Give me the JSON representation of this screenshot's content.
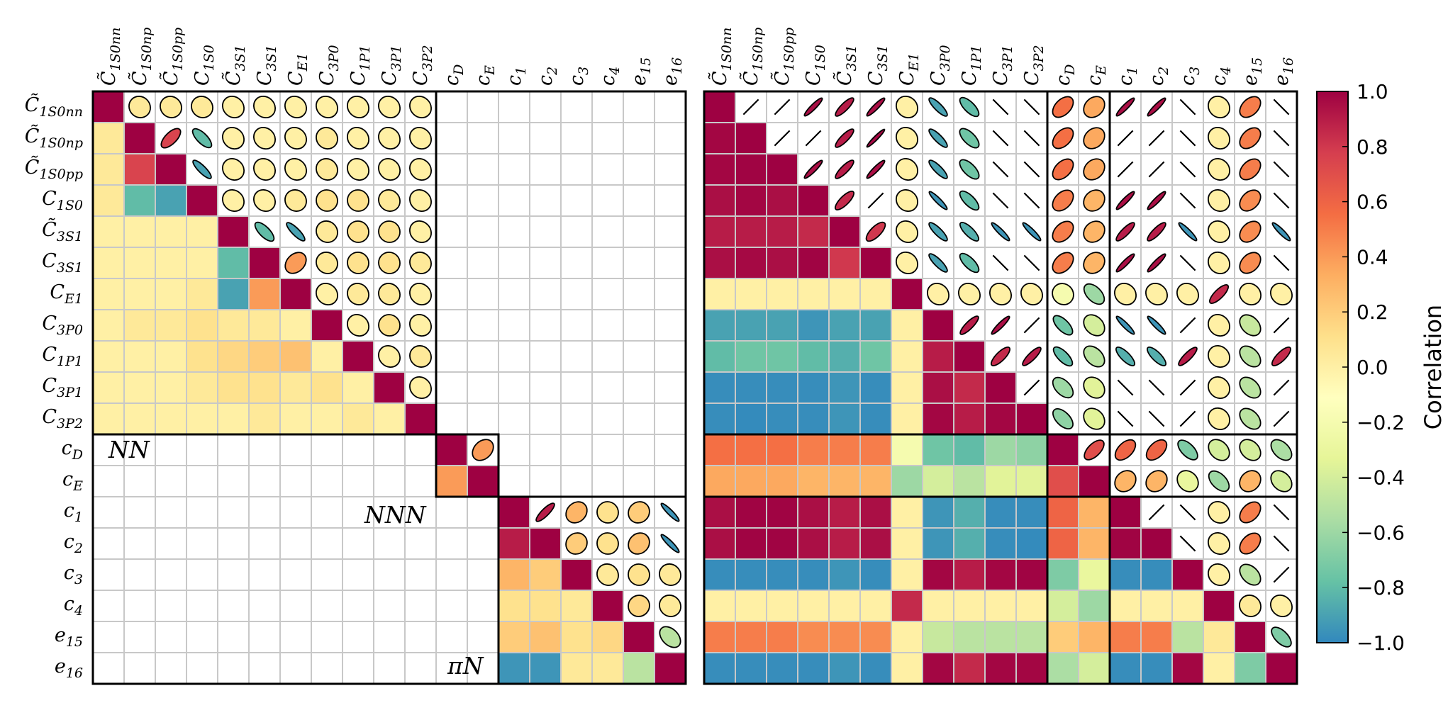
{
  "chart_data": {
    "type": "heatmap",
    "subtype": "correlation-matrix-pair",
    "labels": [
      "C̃1S0nn",
      "C̃1S0np",
      "C̃1S0pp",
      "C1S0",
      "C̃3S1",
      "C3S1",
      "CE1",
      "C3P0",
      "C1P1",
      "C3P1",
      "C3P2",
      "cD",
      "cE",
      "c1",
      "c2",
      "c3",
      "c4",
      "e15",
      "e16"
    ],
    "label_parts": [
      {
        "base": "C",
        "sub": "1S0nn",
        "tilde": true
      },
      {
        "base": "C",
        "sub": "1S0np",
        "tilde": true
      },
      {
        "base": "C",
        "sub": "1S0pp",
        "tilde": true
      },
      {
        "base": "C",
        "sub": "1S0",
        "tilde": false
      },
      {
        "base": "C",
        "sub": "3S1",
        "tilde": true
      },
      {
        "base": "C",
        "sub": "3S1",
        "tilde": false
      },
      {
        "base": "C",
        "sub": "E1",
        "tilde": false
      },
      {
        "base": "C",
        "sub": "3P0",
        "tilde": false
      },
      {
        "base": "C",
        "sub": "1P1",
        "tilde": false
      },
      {
        "base": "C",
        "sub": "3P1",
        "tilde": false
      },
      {
        "base": "C",
        "sub": "3P2",
        "tilde": false
      },
      {
        "base": "c",
        "sub": "D",
        "tilde": false
      },
      {
        "base": "c",
        "sub": "E",
        "tilde": false
      },
      {
        "base": "c",
        "sub": "1",
        "tilde": false
      },
      {
        "base": "c",
        "sub": "2",
        "tilde": false
      },
      {
        "base": "c",
        "sub": "3",
        "tilde": false
      },
      {
        "base": "c",
        "sub": "4",
        "tilde": false
      },
      {
        "base": "e",
        "sub": "15",
        "tilde": false
      },
      {
        "base": "e",
        "sub": "16",
        "tilde": false
      }
    ],
    "blocks": [
      {
        "name": "NN",
        "from": 0,
        "to": 10
      },
      {
        "name": "NNN",
        "from": 11,
        "to": 12
      },
      {
        "name": "πN",
        "from": 13,
        "to": 18
      }
    ],
    "block_labels": [
      "NN",
      "NNN",
      "πN"
    ],
    "colorbar": {
      "label": "Correlation",
      "range": [
        -1.0,
        1.0
      ],
      "ticks": [
        "1.0",
        "0.8",
        "0.6",
        "0.4",
        "0.2",
        "0.0",
        "−0.2",
        "−0.4",
        "−0.6",
        "−0.8",
        "−1.0"
      ],
      "colormap": "Spectral_r",
      "colors": [
        "#3288bd",
        "#66c2a5",
        "#abdda4",
        "#e6f598",
        "#ffffbf",
        "#fee08b",
        "#fdae61",
        "#f46d43",
        "#d53e4f",
        "#9e0142"
      ]
    },
    "matrices": [
      {
        "name": "left",
        "description": "block-diagonal correlations",
        "values": [
          [
            1.0,
            0.05,
            0.05,
            0.05,
            0.0,
            0.0,
            0.0,
            0.0,
            0.0,
            0.0,
            0.0,
            null,
            null,
            null,
            null,
            null,
            null,
            null,
            null
          ],
          [
            0.05,
            1.0,
            0.75,
            -0.8,
            0.0,
            0.0,
            0.0,
            0.05,
            0.0,
            0.0,
            0.0,
            null,
            null,
            null,
            null,
            null,
            null,
            null,
            null
          ],
          [
            0.05,
            0.75,
            1.0,
            -0.9,
            0.0,
            0.0,
            0.0,
            0.05,
            0.0,
            0.0,
            0.0,
            null,
            null,
            null,
            null,
            null,
            null,
            null,
            null
          ],
          [
            0.05,
            -0.8,
            -0.9,
            1.0,
            0.0,
            0.0,
            0.05,
            0.1,
            0.1,
            0.05,
            0.0,
            null,
            null,
            null,
            null,
            null,
            null,
            null,
            null
          ],
          [
            0.0,
            0.0,
            0.0,
            0.0,
            1.0,
            -0.8,
            -0.9,
            0.05,
            0.1,
            0.1,
            0.0,
            null,
            null,
            null,
            null,
            null,
            null,
            null,
            null
          ],
          [
            0.0,
            0.0,
            0.0,
            0.0,
            -0.8,
            1.0,
            0.4,
            0.05,
            0.1,
            0.1,
            0.05,
            null,
            null,
            null,
            null,
            null,
            null,
            null,
            null
          ],
          [
            0.0,
            0.0,
            0.0,
            0.05,
            -0.9,
            0.4,
            1.0,
            0.0,
            0.05,
            0.05,
            0.0,
            null,
            null,
            null,
            null,
            null,
            null,
            null,
            null
          ],
          [
            0.0,
            0.05,
            0.05,
            0.1,
            0.05,
            0.05,
            0.0,
            1.0,
            0.0,
            0.1,
            0.0,
            null,
            null,
            null,
            null,
            null,
            null,
            null,
            null
          ],
          [
            0.0,
            0.0,
            0.0,
            0.1,
            0.15,
            0.2,
            0.25,
            0.0,
            1.0,
            0.0,
            0.05,
            null,
            null,
            null,
            null,
            null,
            null,
            null,
            null
          ],
          [
            0.0,
            0.0,
            0.0,
            0.05,
            0.1,
            0.1,
            0.05,
            0.1,
            0.0,
            1.0,
            0.0,
            null,
            null,
            null,
            null,
            null,
            null,
            null,
            null
          ],
          [
            0.0,
            0.0,
            0.0,
            0.0,
            0.0,
            0.05,
            0.0,
            0.0,
            0.05,
            0.0,
            1.0,
            null,
            null,
            null,
            null,
            null,
            null,
            null,
            null
          ],
          [
            null,
            null,
            null,
            null,
            null,
            null,
            null,
            null,
            null,
            null,
            null,
            1.0,
            0.4,
            null,
            null,
            null,
            null,
            null,
            null
          ],
          [
            null,
            null,
            null,
            null,
            null,
            null,
            null,
            null,
            null,
            null,
            null,
            0.4,
            1.0,
            null,
            null,
            null,
            null,
            null,
            null
          ],
          [
            null,
            null,
            null,
            null,
            null,
            null,
            null,
            null,
            null,
            null,
            null,
            null,
            null,
            1.0,
            0.9,
            0.3,
            0.1,
            0.2,
            -0.95
          ],
          [
            null,
            null,
            null,
            null,
            null,
            null,
            null,
            null,
            null,
            null,
            null,
            null,
            null,
            0.9,
            1.0,
            0.2,
            0.1,
            0.25,
            -0.95
          ],
          [
            null,
            null,
            null,
            null,
            null,
            null,
            null,
            null,
            null,
            null,
            null,
            null,
            null,
            0.3,
            0.2,
            1.0,
            0.05,
            0.1,
            0.05
          ],
          [
            null,
            null,
            null,
            null,
            null,
            null,
            null,
            null,
            null,
            null,
            null,
            null,
            null,
            0.1,
            0.1,
            0.05,
            1.0,
            0.15,
            0.05
          ],
          [
            null,
            null,
            null,
            null,
            null,
            null,
            null,
            null,
            null,
            null,
            null,
            null,
            null,
            0.2,
            0.25,
            0.1,
            0.15,
            1.0,
            -0.5
          ],
          [
            null,
            null,
            null,
            null,
            null,
            null,
            null,
            null,
            null,
            null,
            null,
            null,
            null,
            -0.95,
            -0.95,
            0.05,
            0.05,
            -0.5,
            1.0
          ]
        ]
      },
      {
        "name": "right",
        "description": "full correlations",
        "values": [
          [
            1.0,
            0.98,
            0.98,
            0.95,
            0.9,
            0.95,
            0.0,
            -0.9,
            -0.8,
            -0.98,
            -0.98,
            0.55,
            0.35,
            0.95,
            0.95,
            -0.98,
            0.0,
            0.5,
            -0.98
          ],
          [
            0.98,
            1.0,
            0.99,
            0.98,
            0.9,
            0.97,
            0.0,
            -0.9,
            -0.75,
            -0.98,
            -0.99,
            0.55,
            0.35,
            0.99,
            0.99,
            -0.98,
            0.0,
            0.5,
            -0.98
          ],
          [
            0.98,
            0.99,
            1.0,
            0.95,
            0.9,
            0.95,
            0.0,
            -0.9,
            -0.75,
            -0.98,
            -0.98,
            0.55,
            0.35,
            0.99,
            0.99,
            -0.98,
            0.0,
            0.5,
            -0.98
          ],
          [
            0.95,
            0.98,
            0.95,
            1.0,
            0.85,
            0.99,
            0.0,
            -0.95,
            -0.8,
            -0.98,
            -0.98,
            0.5,
            0.3,
            0.95,
            0.95,
            -0.98,
            0.0,
            0.45,
            -0.98
          ],
          [
            0.9,
            0.9,
            0.9,
            0.85,
            1.0,
            0.8,
            0.0,
            -0.9,
            -0.85,
            -0.95,
            -0.95,
            0.5,
            0.3,
            0.9,
            0.9,
            -0.95,
            0.0,
            0.45,
            -0.95
          ],
          [
            0.95,
            0.97,
            0.95,
            0.99,
            0.8,
            1.0,
            0.0,
            -0.9,
            -0.8,
            -0.98,
            -0.98,
            0.5,
            0.3,
            0.95,
            0.95,
            -0.98,
            0.0,
            0.45,
            -0.98
          ],
          [
            0.0,
            0.0,
            0.0,
            0.0,
            0.0,
            0.0,
            1.0,
            0.0,
            0.0,
            0.0,
            0.0,
            -0.2,
            -0.6,
            0.0,
            0.0,
            0.0,
            0.85,
            0.0,
            0.0
          ],
          [
            -0.9,
            -0.9,
            -0.9,
            -0.95,
            -0.9,
            -0.9,
            0.0,
            1.0,
            0.9,
            0.95,
            0.98,
            -0.75,
            -0.4,
            -0.95,
            -0.95,
            0.98,
            0.0,
            -0.45,
            0.98
          ],
          [
            -0.8,
            -0.75,
            -0.75,
            -0.8,
            -0.85,
            -0.75,
            0.0,
            0.9,
            1.0,
            0.85,
            0.9,
            -0.8,
            -0.5,
            -0.85,
            -0.85,
            0.9,
            0.0,
            -0.5,
            0.85
          ],
          [
            -0.98,
            -0.98,
            -0.98,
            -0.98,
            -0.95,
            -0.98,
            0.0,
            0.95,
            0.85,
            1.0,
            0.98,
            -0.6,
            -0.35,
            -0.98,
            -0.98,
            0.98,
            0.0,
            -0.5,
            0.98
          ],
          [
            -0.98,
            -0.99,
            -0.98,
            -0.98,
            -0.95,
            -0.98,
            0.0,
            0.98,
            0.9,
            0.98,
            1.0,
            -0.65,
            -0.35,
            -0.98,
            -0.99,
            0.99,
            0.0,
            -0.5,
            0.98
          ],
          [
            0.55,
            0.55,
            0.55,
            0.5,
            0.5,
            0.5,
            -0.2,
            -0.75,
            -0.8,
            -0.6,
            -0.65,
            1.0,
            0.7,
            0.6,
            0.6,
            -0.7,
            -0.4,
            -0.4,
            -0.55
          ],
          [
            0.35,
            0.35,
            0.35,
            0.3,
            0.3,
            0.3,
            -0.6,
            -0.4,
            -0.5,
            -0.35,
            -0.35,
            0.7,
            1.0,
            0.3,
            0.3,
            -0.3,
            -0.6,
            0.3,
            -0.4
          ],
          [
            0.95,
            0.99,
            0.99,
            0.95,
            0.9,
            0.95,
            0.0,
            -0.95,
            -0.85,
            -0.98,
            -0.98,
            0.6,
            0.3,
            1.0,
            0.99,
            -0.98,
            0.0,
            0.5,
            -0.98
          ],
          [
            0.95,
            0.99,
            0.99,
            0.95,
            0.9,
            0.95,
            0.0,
            -0.95,
            -0.85,
            -0.98,
            -0.99,
            0.6,
            0.3,
            0.99,
            1.0,
            -0.98,
            0.0,
            0.5,
            -0.98
          ],
          [
            -0.98,
            -0.98,
            -0.98,
            -0.98,
            -0.95,
            -0.98,
            0.0,
            0.98,
            0.9,
            0.98,
            0.99,
            -0.7,
            -0.3,
            -0.98,
            -0.98,
            1.0,
            0.0,
            -0.5,
            0.98
          ],
          [
            0.0,
            0.0,
            0.0,
            0.0,
            0.0,
            0.0,
            0.85,
            0.0,
            0.0,
            0.0,
            0.0,
            -0.4,
            -0.6,
            0.0,
            0.0,
            0.0,
            1.0,
            0.05,
            0.0
          ],
          [
            0.5,
            0.5,
            0.5,
            0.45,
            0.45,
            0.45,
            0.0,
            -0.45,
            -0.5,
            -0.5,
            -0.5,
            0.2,
            0.3,
            0.5,
            0.5,
            -0.5,
            0.05,
            1.0,
            -0.7
          ],
          [
            -0.98,
            -0.98,
            -0.98,
            -0.98,
            -0.95,
            -0.98,
            0.0,
            0.98,
            0.85,
            0.98,
            0.98,
            -0.55,
            -0.4,
            -0.98,
            -0.98,
            0.98,
            0.0,
            -0.7,
            1.0
          ]
        ]
      }
    ]
  }
}
